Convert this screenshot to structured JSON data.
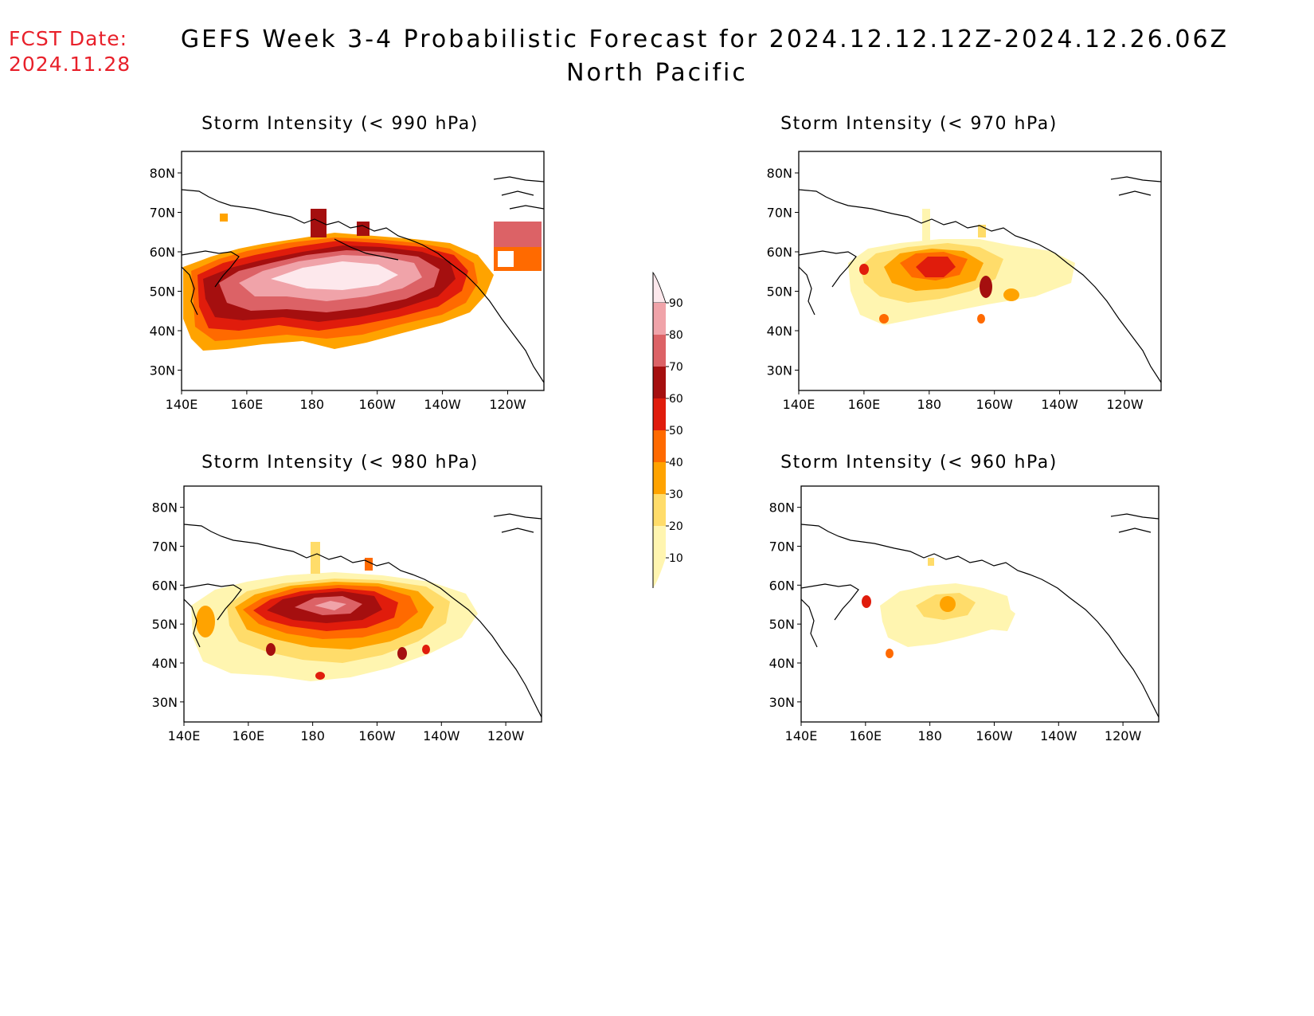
{
  "header": {
    "fcst_label": "FCST Date:",
    "fcst_date": "2024.11.28",
    "title": "GEFS Week 3-4 Probabilistic Forecast for 2024.12.12.12Z-2024.12.26.06Z",
    "region": "North Pacific"
  },
  "panels": [
    {
      "title": "Storm Intensity (< 990 hPa)",
      "threshold_hpa": 990
    },
    {
      "title": "Storm Intensity (< 970 hPa)",
      "threshold_hpa": 970
    },
    {
      "title": "Storm Intensity (< 980 hPa)",
      "threshold_hpa": 980
    },
    {
      "title": "Storm Intensity (< 960 hPa)",
      "threshold_hpa": 960
    }
  ],
  "axes": {
    "lon_labels": [
      "140E",
      "160E",
      "180",
      "160W",
      "140W",
      "120W"
    ],
    "lat_labels": [
      "80N",
      "70N",
      "60N",
      "50N",
      "40N",
      "30N"
    ]
  },
  "colorbar": {
    "levels": [
      "90",
      "80",
      "70",
      "60",
      "50",
      "40",
      "30",
      "20",
      "10"
    ],
    "colors": [
      "#fde8ec",
      "#f0a3a9",
      "#dc6266",
      "#a50f0f",
      "#e01c0c",
      "#ff6a00",
      "#ffa300",
      "#ffdc6a",
      "#fff5b0"
    ]
  }
}
